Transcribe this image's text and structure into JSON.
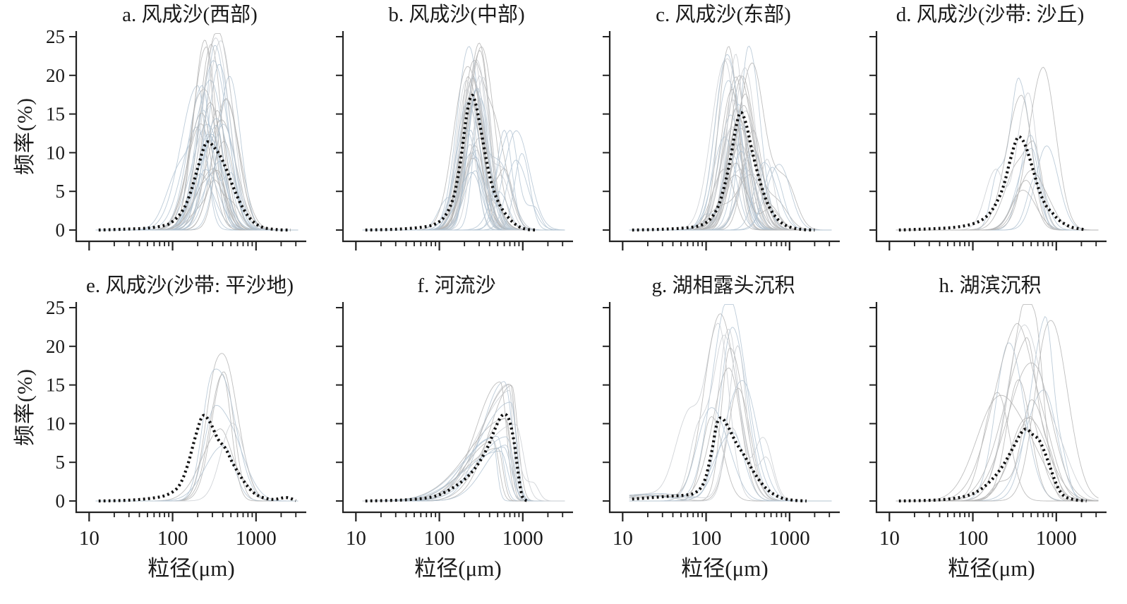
{
  "chart_data": {
    "type": "line",
    "layout": {
      "rows": 2,
      "cols": 4,
      "grid": false,
      "legend": "none"
    },
    "xlabel": "粒径(μm)",
    "ylabel": "频率(%)",
    "x_scale": "log",
    "x_range": [
      7,
      4000
    ],
    "x_ticks": [
      10,
      100,
      1000
    ],
    "x_minor_ticks": [
      20,
      30,
      40,
      50,
      60,
      70,
      80,
      90,
      200,
      300,
      400,
      500,
      600,
      700,
      800,
      900,
      2000,
      3000
    ],
    "y_range": [
      0,
      25
    ],
    "y_ticks": [
      0,
      5,
      10,
      15,
      20,
      25
    ],
    "colors": {
      "axis": "#222222",
      "mean_line": "#111111",
      "sample_line_gray": "#b3b3b3",
      "sample_line_blue": "#b2c3d2",
      "sample_line_light": "#c9cdd1"
    },
    "panels": [
      {
        "id": "a",
        "title": "a. 风成沙(西部)",
        "mean": [
          [
            13,
            0
          ],
          [
            25,
            0.1
          ],
          [
            50,
            0.25
          ],
          [
            80,
            0.6
          ],
          [
            100,
            1.1
          ],
          [
            130,
            2.4
          ],
          [
            160,
            4.5
          ],
          [
            200,
            8
          ],
          [
            240,
            10.8
          ],
          [
            270,
            11.4
          ],
          [
            320,
            10.6
          ],
          [
            380,
            9.4
          ],
          [
            450,
            7.6
          ],
          [
            550,
            5.2
          ],
          [
            700,
            2.8
          ],
          [
            900,
            1.2
          ],
          [
            1200,
            0.35
          ],
          [
            1800,
            0.05
          ],
          [
            2600,
            0
          ]
        ],
        "samples": {
          "count": 38,
          "peak_x_um": [
            160,
            620
          ],
          "peak_y_pct": [
            6,
            25
          ],
          "width_left_log": [
            0.1,
            0.2
          ],
          "width_right_log": [
            0.09,
            0.18
          ],
          "second_peak_prob": 0.35,
          "seed": 101
        }
      },
      {
        "id": "b",
        "title": "b. 风成沙(中部)",
        "mean": [
          [
            13,
            0
          ],
          [
            30,
            0.1
          ],
          [
            60,
            0.35
          ],
          [
            90,
            0.8
          ],
          [
            120,
            2
          ],
          [
            150,
            4.5
          ],
          [
            180,
            9
          ],
          [
            210,
            14.5
          ],
          [
            240,
            17.3
          ],
          [
            270,
            16.5
          ],
          [
            320,
            12.5
          ],
          [
            400,
            7
          ],
          [
            500,
            3.8
          ],
          [
            650,
            1.8
          ],
          [
            850,
            0.6
          ],
          [
            1100,
            0.1
          ],
          [
            1500,
            0
          ]
        ],
        "samples": {
          "count": 38,
          "peak_x_um": [
            180,
            360
          ],
          "peak_y_pct": [
            7,
            24.5
          ],
          "width_left_log": [
            0.08,
            0.16
          ],
          "width_right_log": [
            0.08,
            0.16
          ],
          "second_peak_prob": 0.3,
          "seed": 202,
          "outliers": {
            "count": 5,
            "peak_x_um": [
              500,
              1300
            ],
            "peak_y_pct": [
              8,
              14
            ]
          }
        }
      },
      {
        "id": "c",
        "title": "c. 风成沙(东部)",
        "mean": [
          [
            13,
            0
          ],
          [
            30,
            0.1
          ],
          [
            60,
            0.3
          ],
          [
            90,
            0.7
          ],
          [
            120,
            1.8
          ],
          [
            150,
            4
          ],
          [
            190,
            8.5
          ],
          [
            230,
            13.5
          ],
          [
            260,
            15.2
          ],
          [
            300,
            13.8
          ],
          [
            360,
            10
          ],
          [
            450,
            6
          ],
          [
            570,
            3
          ],
          [
            750,
            1.2
          ],
          [
            1000,
            0.4
          ],
          [
            1400,
            0.08
          ],
          [
            2000,
            0
          ]
        ],
        "samples": {
          "count": 40,
          "peak_x_um": [
            150,
            420
          ],
          "peak_y_pct": [
            7,
            24
          ],
          "width_left_log": [
            0.09,
            0.18
          ],
          "width_right_log": [
            0.09,
            0.16
          ],
          "second_peak_prob": 0.35,
          "seed": 303,
          "outliers": {
            "count": 3,
            "peak_x_um": [
              450,
              900
            ],
            "peak_y_pct": [
              6,
              10
            ]
          }
        }
      },
      {
        "id": "d",
        "title": "d. 风成沙(沙带: 沙丘)",
        "mean": [
          [
            13,
            0
          ],
          [
            30,
            0.15
          ],
          [
            60,
            0.35
          ],
          [
            100,
            0.8
          ],
          [
            140,
            1.6
          ],
          [
            180,
            3
          ],
          [
            230,
            5.5
          ],
          [
            280,
            9
          ],
          [
            330,
            11.6
          ],
          [
            370,
            12
          ],
          [
            430,
            10.8
          ],
          [
            520,
            8
          ],
          [
            620,
            5.2
          ],
          [
            750,
            3.2
          ],
          [
            900,
            2.2
          ],
          [
            1100,
            1.2
          ],
          [
            1500,
            0.4
          ],
          [
            2200,
            0.05
          ]
        ],
        "samples": {
          "count": 12,
          "peak_x_um": [
            250,
            950
          ],
          "peak_y_pct": [
            5,
            19
          ],
          "width_left_log": [
            0.09,
            0.2
          ],
          "width_right_log": [
            0.08,
            0.16
          ],
          "second_peak_prob": 0.45,
          "seed": 404
        }
      },
      {
        "id": "e",
        "title": "e. 风成沙(沙带: 平沙地)",
        "mean": [
          [
            13,
            0
          ],
          [
            30,
            0.1
          ],
          [
            60,
            0.4
          ],
          [
            90,
            0.9
          ],
          [
            120,
            2
          ],
          [
            150,
            4.5
          ],
          [
            190,
            8.5
          ],
          [
            230,
            11
          ],
          [
            280,
            10.2
          ],
          [
            350,
            8
          ],
          [
            430,
            6.8
          ],
          [
            520,
            5
          ],
          [
            650,
            3.2
          ],
          [
            850,
            1.5
          ],
          [
            1100,
            0.6
          ],
          [
            1600,
            0.2
          ],
          [
            2300,
            0.45
          ],
          [
            3000,
            0.05
          ]
        ],
        "samples": {
          "count": 8,
          "peak_x_um": [
            180,
            650
          ],
          "peak_y_pct": [
            6.5,
            17.2
          ],
          "width_left_log": [
            0.12,
            0.25
          ],
          "width_right_log": [
            0.1,
            0.2
          ],
          "second_peak_prob": 0.4,
          "seed": 505
        }
      },
      {
        "id": "f",
        "title": "f. 河流沙",
        "mean": [
          [
            13,
            0
          ],
          [
            40,
            0.15
          ],
          [
            80,
            0.5
          ],
          [
            120,
            1.2
          ],
          [
            170,
            2.2
          ],
          [
            230,
            3.4
          ],
          [
            300,
            5
          ],
          [
            380,
            7
          ],
          [
            460,
            9.2
          ],
          [
            540,
            10.8
          ],
          [
            620,
            11.2
          ],
          [
            700,
            10.2
          ],
          [
            790,
            7.5
          ],
          [
            870,
            4
          ],
          [
            950,
            1.3
          ],
          [
            1020,
            0.3
          ],
          [
            1150,
            0
          ]
        ],
        "samples": {
          "count": 18,
          "peak_x_um": [
            350,
            900
          ],
          "peak_y_pct": [
            6,
            16
          ],
          "width_left_log": [
            0.25,
            0.45
          ],
          "width_right_log": [
            0.05,
            0.1
          ],
          "second_peak_prob": 0.15,
          "seed": 606
        }
      },
      {
        "id": "g",
        "title": "g. 湖相露头沉积",
        "mean": [
          [
            13,
            0.25
          ],
          [
            20,
            0.4
          ],
          [
            35,
            0.6
          ],
          [
            55,
            0.75
          ],
          [
            75,
            1.1
          ],
          [
            95,
            2.5
          ],
          [
            115,
            6
          ],
          [
            135,
            10
          ],
          [
            155,
            10.7
          ],
          [
            185,
            9.5
          ],
          [
            230,
            7.5
          ],
          [
            290,
            5.8
          ],
          [
            370,
            3.8
          ],
          [
            470,
            2.2
          ],
          [
            600,
            1.1
          ],
          [
            800,
            0.4
          ],
          [
            1100,
            0.1
          ],
          [
            1600,
            0
          ]
        ],
        "samples": {
          "count": 15,
          "peak_x_um": [
            100,
            320
          ],
          "peak_y_pct": [
            7,
            24
          ],
          "width_left_log": [
            0.1,
            0.22
          ],
          "width_right_log": [
            0.1,
            0.2
          ],
          "second_peak_prob": 0.4,
          "seed": 707,
          "base_bump": {
            "prob": 0.5,
            "x_um": [
              16,
              50
            ],
            "y_pct": [
              0.4,
              1.2
            ]
          }
        }
      },
      {
        "id": "h",
        "title": "h. 湖滨沉积",
        "mean": [
          [
            13,
            0
          ],
          [
            40,
            0.15
          ],
          [
            80,
            0.6
          ],
          [
            120,
            1.4
          ],
          [
            170,
            2.8
          ],
          [
            230,
            4.6
          ],
          [
            300,
            6.8
          ],
          [
            380,
            8.8
          ],
          [
            440,
            9.3
          ],
          [
            520,
            8.6
          ],
          [
            620,
            7.9
          ],
          [
            720,
            6.4
          ],
          [
            830,
            4.6
          ],
          [
            950,
            2.8
          ],
          [
            1100,
            1.3
          ],
          [
            1300,
            0.5
          ],
          [
            1700,
            0.15
          ],
          [
            2300,
            0
          ]
        ],
        "samples": {
          "count": 15,
          "peak_x_um": [
            180,
            1000
          ],
          "peak_y_pct": [
            6,
            24
          ],
          "width_left_log": [
            0.12,
            0.3
          ],
          "width_right_log": [
            0.08,
            0.25
          ],
          "second_peak_prob": 0.6,
          "seed": 808
        }
      }
    ]
  }
}
